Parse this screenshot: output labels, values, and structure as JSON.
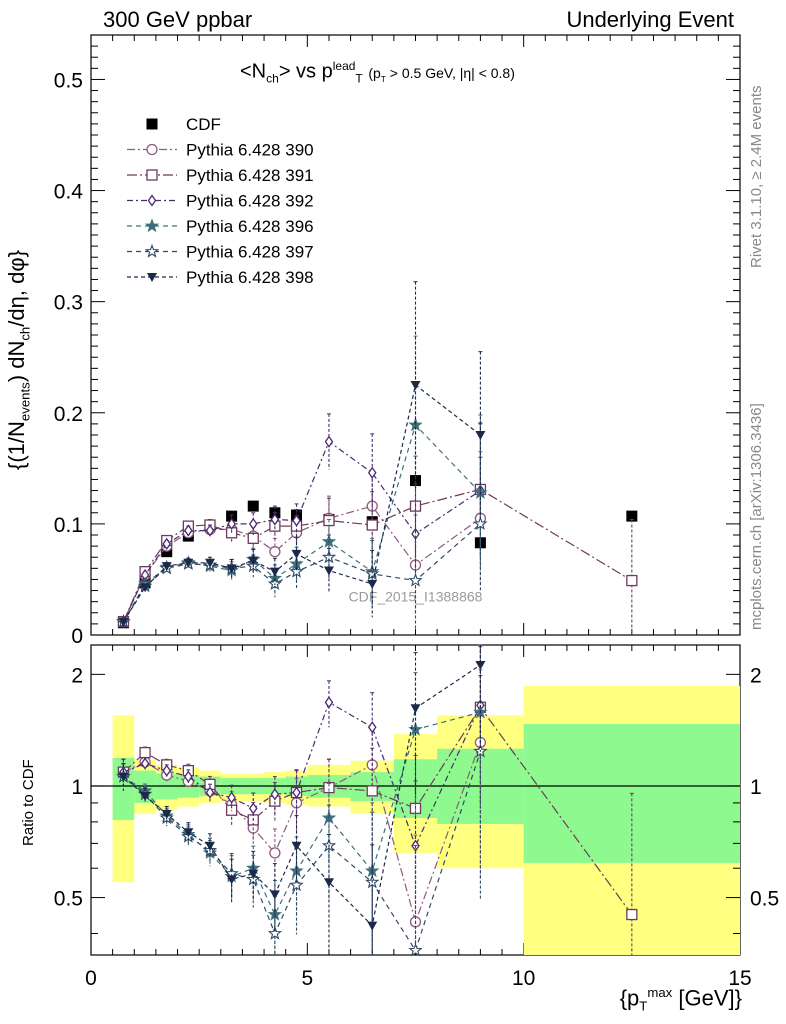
{
  "header": {
    "left": "300 GeV ppbar",
    "right": "Underlying Event"
  },
  "title": {
    "main": "<N",
    "main_sub": "ch",
    "main_mid": "> vs p",
    "main_sup": "lead",
    "main_sub2": "T",
    "cuts_pre": "(p",
    "cuts_sub": "T",
    "cuts_post": " > 0.5 GeV, |η| < 0.8)"
  },
  "side_labels": {
    "rivet": "Rivet 3.1.10, ≥ 2.4M events",
    "mcplots": "mcplots.cern.ch [arXiv:1306.3436]"
  },
  "watermark": "CDF_2015_I1388868",
  "axes": {
    "ylabel_pre": "{(1/N",
    "ylabel_sub1": "events",
    "ylabel_mid": ") dN",
    "ylabel_sub2": "ch",
    "ylabel_post": "/dη, dφ}",
    "ratio_ylabel": "Ratio to CDF",
    "xlabel_pre": "{p",
    "xlabel_sub": "T",
    "xlabel_sup": "max",
    "xlabel_post": " [GeV]}"
  },
  "chart_data": [
    {
      "type": "scatter",
      "panel": "main",
      "xlim": [
        0,
        15
      ],
      "ylim": [
        0,
        0.54
      ],
      "x_ticks": [
        0,
        5,
        10,
        15
      ],
      "y_ticks": [
        0,
        0.1,
        0.2,
        0.3,
        0.4,
        0.5
      ],
      "y_tick_labels": [
        "0",
        "0.1",
        "0.2",
        "0.3",
        "0.4",
        "0.5"
      ],
      "legend_position": "top-left",
      "series": [
        {
          "name": "CDF",
          "marker": "square-filled",
          "color": "#000000",
          "line": "none",
          "x": [
            0.75,
            1.25,
            1.75,
            2.25,
            2.75,
            3.25,
            3.75,
            4.25,
            4.75,
            5.5,
            6.5,
            7.5,
            9.0,
            12.5
          ],
          "y": [
            0.011,
            0.047,
            0.075,
            0.089,
            0.098,
            0.107,
            0.116,
            0.11,
            0.108,
            0.104,
            0.102,
            0.139,
            0.083,
            0.107
          ]
        },
        {
          "name": "Pythia 6.428 390",
          "marker": "circle-open",
          "color": "#8e5a7e",
          "dash": "8,3,2,3",
          "x": [
            0.75,
            1.25,
            1.75,
            2.25,
            2.75,
            3.25,
            3.75,
            4.25,
            4.75,
            5.5,
            6.5,
            7.5,
            9.0
          ],
          "y": [
            0.012,
            0.054,
            0.08,
            0.092,
            0.095,
            0.095,
            0.089,
            0.075,
            0.092,
            0.105,
            0.116,
            0.063,
            0.105
          ],
          "err": [
            0.001,
            0.002,
            0.003,
            0.004,
            0.005,
            0.008,
            0.01,
            0.012,
            0.015,
            0.02,
            0.03,
            0.045,
            0.06
          ]
        },
        {
          "name": "Pythia 6.428 391",
          "marker": "square-open",
          "color": "#6e3a5e",
          "dash": "10,3,2,3",
          "x": [
            0.75,
            1.25,
            1.75,
            2.25,
            2.75,
            3.25,
            3.75,
            4.25,
            4.75,
            5.5,
            6.5,
            7.5,
            9.0,
            12.5
          ],
          "y": [
            0.012,
            0.057,
            0.085,
            0.098,
            0.099,
            0.092,
            0.087,
            0.098,
            0.098,
            0.103,
            0.099,
            0.116,
            0.131,
            0.049
          ],
          "err": [
            0.001,
            0.002,
            0.003,
            0.004,
            0.005,
            0.008,
            0.01,
            0.012,
            0.015,
            0.02,
            0.03,
            0.045,
            0.06,
            0.055
          ]
        },
        {
          "name": "Pythia 6.428 392",
          "marker": "diamond-open",
          "color": "#4a2a70",
          "dash": "6,3,2,3",
          "x": [
            0.75,
            1.25,
            1.75,
            2.25,
            2.75,
            3.25,
            3.75,
            4.25,
            4.75,
            5.5,
            6.5,
            7.5,
            9.0
          ],
          "y": [
            0.012,
            0.054,
            0.082,
            0.094,
            0.094,
            0.1,
            0.1,
            0.104,
            0.103,
            0.174,
            0.146,
            0.091,
            0.13
          ],
          "err": [
            0.001,
            0.002,
            0.003,
            0.004,
            0.005,
            0.008,
            0.01,
            0.012,
            0.015,
            0.025,
            0.035,
            0.045,
            0.06
          ]
        },
        {
          "name": "Pythia 6.428 396",
          "marker": "star-filled",
          "color": "#3f6f7a",
          "dash": "5,4",
          "x": [
            0.75,
            1.25,
            1.75,
            2.25,
            2.75,
            3.25,
            3.75,
            4.25,
            4.75,
            5.5,
            6.5,
            7.5,
            9.0
          ],
          "y": [
            0.012,
            0.046,
            0.061,
            0.065,
            0.062,
            0.058,
            0.068,
            0.051,
            0.064,
            0.084,
            0.057,
            0.189,
            0.128
          ],
          "err": [
            0.001,
            0.002,
            0.003,
            0.004,
            0.005,
            0.008,
            0.01,
            0.012,
            0.015,
            0.02,
            0.03,
            0.08,
            0.07
          ]
        },
        {
          "name": "Pythia 6.428 397",
          "marker": "star-open",
          "color": "#2e4a66",
          "dash": "5,4",
          "x": [
            0.75,
            1.25,
            1.75,
            2.25,
            2.75,
            3.25,
            3.75,
            4.25,
            4.75,
            5.5,
            6.5,
            7.5,
            9.0
          ],
          "y": [
            0.012,
            0.044,
            0.06,
            0.064,
            0.063,
            0.06,
            0.062,
            0.046,
            0.057,
            0.07,
            0.055,
            0.049,
            0.1
          ],
          "err": [
            0.001,
            0.002,
            0.003,
            0.004,
            0.005,
            0.008,
            0.01,
            0.012,
            0.015,
            0.02,
            0.03,
            0.045,
            0.06
          ]
        },
        {
          "name": "Pythia 6.428 398",
          "marker": "triangle-down-filled",
          "color": "#1c2a4a",
          "dash": "4,3",
          "x": [
            0.75,
            1.25,
            1.75,
            2.25,
            2.75,
            3.25,
            3.75,
            4.25,
            4.75,
            5.5,
            6.5,
            7.5,
            9.0
          ],
          "y": [
            0.012,
            0.043,
            0.062,
            0.065,
            0.065,
            0.06,
            0.067,
            0.057,
            0.073,
            0.058,
            0.046,
            0.225,
            0.18
          ],
          "err": [
            0.001,
            0.002,
            0.003,
            0.004,
            0.005,
            0.008,
            0.01,
            0.012,
            0.015,
            0.02,
            0.03,
            0.093,
            0.075
          ]
        }
      ]
    },
    {
      "type": "scatter",
      "panel": "ratio",
      "ylabel": "Ratio to CDF",
      "xlim": [
        0,
        15
      ],
      "ylim": [
        0.35,
        2.4
      ],
      "log_y": true,
      "y_ticks": [
        0.5,
        1,
        2
      ],
      "y_tick_labels": [
        "0.5",
        "1",
        "2"
      ],
      "x_tick_labels": [
        "0",
        "5",
        "10",
        "15"
      ],
      "uncertainty_bins": [
        {
          "x0": 0.5,
          "x1": 1.0,
          "green": [
            0.81,
            1.19
          ],
          "yellow": [
            0.55,
            1.55
          ]
        },
        {
          "x0": 1.0,
          "x1": 1.5,
          "green": [
            0.9,
            1.1
          ],
          "yellow": [
            0.84,
            1.18
          ]
        },
        {
          "x0": 1.5,
          "x1": 2.0,
          "green": [
            0.92,
            1.08
          ],
          "yellow": [
            0.86,
            1.14
          ]
        },
        {
          "x0": 2.0,
          "x1": 2.5,
          "green": [
            0.93,
            1.07
          ],
          "yellow": [
            0.88,
            1.12
          ]
        },
        {
          "x0": 2.5,
          "x1": 3.0,
          "green": [
            0.94,
            1.06
          ],
          "yellow": [
            0.9,
            1.1
          ]
        },
        {
          "x0": 3.0,
          "x1": 3.5,
          "green": [
            0.95,
            1.05
          ],
          "yellow": [
            0.91,
            1.08
          ]
        },
        {
          "x0": 3.5,
          "x1": 4.0,
          "green": [
            0.95,
            1.05
          ],
          "yellow": [
            0.91,
            1.08
          ]
        },
        {
          "x0": 4.0,
          "x1": 4.5,
          "green": [
            0.95,
            1.05
          ],
          "yellow": [
            0.9,
            1.09
          ]
        },
        {
          "x0": 4.5,
          "x1": 5.0,
          "green": [
            0.94,
            1.06
          ],
          "yellow": [
            0.89,
            1.1
          ]
        },
        {
          "x0": 5.0,
          "x1": 6.0,
          "green": [
            0.93,
            1.07
          ],
          "yellow": [
            0.88,
            1.14
          ]
        },
        {
          "x0": 6.0,
          "x1": 7.0,
          "green": [
            0.91,
            1.09
          ],
          "yellow": [
            0.84,
            1.17
          ]
        },
        {
          "x0": 7.0,
          "x1": 8.0,
          "green": [
            0.82,
            1.18
          ],
          "yellow": [
            0.66,
            1.38
          ]
        },
        {
          "x0": 8.0,
          "x1": 10.0,
          "green": [
            0.79,
            1.26
          ],
          "yellow": [
            0.6,
            1.55
          ]
        },
        {
          "x0": 10.0,
          "x1": 15.0,
          "green": [
            0.62,
            1.47
          ],
          "yellow": [
            0.25,
            1.86
          ]
        }
      ],
      "series": [
        {
          "name": "Pythia 6.428 390",
          "x": [
            0.75,
            1.25,
            1.75,
            2.25,
            2.75,
            3.25,
            3.75,
            4.25,
            4.75,
            5.5,
            6.5,
            7.5,
            9.0
          ],
          "y": [
            1.09,
            1.16,
            1.07,
            1.03,
            0.97,
            0.89,
            0.77,
            0.66,
            0.9,
            0.99,
            1.14,
            0.43,
            1.31
          ]
        },
        {
          "name": "Pythia 6.428 391",
          "x": [
            0.75,
            1.25,
            1.75,
            2.25,
            2.75,
            3.25,
            3.75,
            4.25,
            4.75,
            5.5,
            6.5,
            7.5,
            9.0,
            12.5
          ],
          "y": [
            1.09,
            1.23,
            1.14,
            1.1,
            1.01,
            0.86,
            0.81,
            0.91,
            0.96,
            0.99,
            0.97,
            0.87,
            1.63,
            0.45
          ]
        },
        {
          "name": "Pythia 6.428 392",
          "x": [
            0.75,
            1.25,
            1.75,
            2.25,
            2.75,
            3.25,
            3.75,
            4.25,
            4.75,
            5.5,
            6.5,
            7.5,
            9.0
          ],
          "y": [
            1.09,
            1.15,
            1.1,
            1.06,
            0.96,
            0.93,
            0.87,
            0.95,
            0.96,
            1.68,
            1.44,
            0.69,
            1.65
          ]
        },
        {
          "name": "Pythia 6.428 396",
          "x": [
            0.75,
            1.25,
            1.75,
            2.25,
            2.75,
            3.25,
            3.75,
            4.25,
            4.75,
            5.5,
            6.5,
            7.5,
            9.0
          ],
          "y": [
            1.06,
            0.97,
            0.83,
            0.74,
            0.66,
            0.57,
            0.6,
            0.45,
            0.59,
            0.82,
            0.59,
            1.42,
            1.58
          ]
        },
        {
          "name": "Pythia 6.428 397",
          "x": [
            0.75,
            1.25,
            1.75,
            2.25,
            2.75,
            3.25,
            3.75,
            4.25,
            4.75,
            5.5,
            6.5,
            7.5,
            9.0
          ],
          "y": [
            1.06,
            0.95,
            0.82,
            0.73,
            0.67,
            0.58,
            0.56,
            0.4,
            0.54,
            0.69,
            0.55,
            0.36,
            1.24
          ]
        },
        {
          "name": "Pythia 6.428 398",
          "x": [
            0.75,
            1.25,
            1.75,
            2.25,
            2.75,
            3.25,
            3.75,
            4.25,
            4.75,
            5.5,
            6.5,
            7.5,
            9.0
          ],
          "y": [
            1.06,
            0.94,
            0.84,
            0.75,
            0.69,
            0.56,
            0.58,
            0.51,
            0.69,
            0.55,
            0.42,
            1.62,
            2.12
          ]
        }
      ]
    }
  ]
}
